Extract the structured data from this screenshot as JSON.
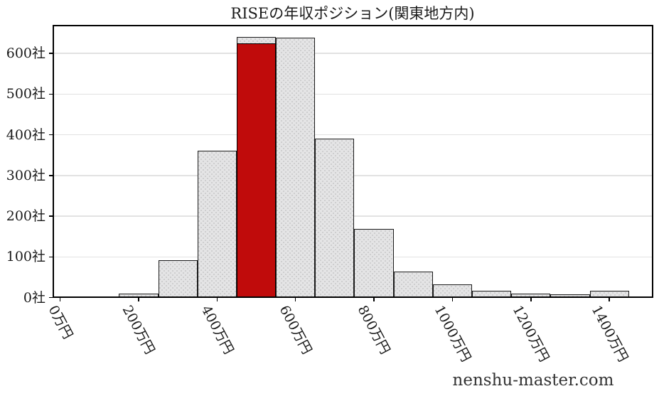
{
  "watermark": "nenshu-master.com",
  "colors": {
    "highlight": "#c00b0b",
    "bar_fill": "#e4e4e5",
    "bar_dot": "#c6c6c8",
    "bar_edge": "#1a1a1a",
    "grid": "#e2e2e2",
    "spine": "#000000",
    "text": "#1a1a1a",
    "watermark_text": "#333333"
  },
  "chart_data": {
    "type": "bar",
    "title": "RISEの年収ポジション(関東地方内)",
    "xlabel": "",
    "ylabel": "",
    "x_unit": "万円",
    "y_unit": "社",
    "x_tick_labels": [
      "0万円",
      "200万円",
      "400万円",
      "600万円",
      "800万円",
      "1000万円",
      "1200万円",
      "1400万円"
    ],
    "x_tick_values": [
      0,
      200,
      400,
      600,
      800,
      1000,
      1200,
      1400
    ],
    "y_tick_labels": [
      "0社",
      "100社",
      "200社",
      "300社",
      "400社",
      "500社",
      "600社"
    ],
    "y_tick_values": [
      0,
      100,
      200,
      300,
      400,
      500,
      600
    ],
    "bin_width": 100,
    "bars": [
      {
        "center": 100,
        "value": 3
      },
      {
        "center": 200,
        "value": 10
      },
      {
        "center": 300,
        "value": 92
      },
      {
        "center": 400,
        "value": 360
      },
      {
        "center": 500,
        "value": 640,
        "highlighted": true,
        "highlight_value": 624
      },
      {
        "center": 600,
        "value": 638
      },
      {
        "center": 700,
        "value": 391
      },
      {
        "center": 800,
        "value": 168
      },
      {
        "center": 900,
        "value": 63
      },
      {
        "center": 1000,
        "value": 33
      },
      {
        "center": 1100,
        "value": 17
      },
      {
        "center": 1200,
        "value": 10
      },
      {
        "center": 1300,
        "value": 8
      },
      {
        "center": 1400,
        "value": 16
      }
    ],
    "highlight_bin_center": 500,
    "xlim": [
      -20,
      1512
    ],
    "ylim": [
      0,
      670
    ],
    "grid": "horizontal",
    "legend": "none"
  }
}
